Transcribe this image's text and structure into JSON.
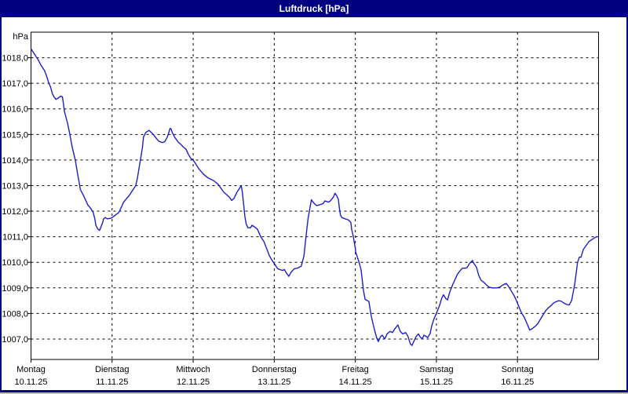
{
  "window": {
    "title": "Luftdruck [hPa]",
    "title_bar_color": "#000080",
    "border_color": "#000080",
    "background_color": "#ffffff"
  },
  "chart_data": {
    "type": "line",
    "title": "Luftdruck [hPa]",
    "ylabel": "hPa",
    "xlabel": "",
    "grid": "dashed",
    "legend_position": "none",
    "line_color": "#1e1ec8",
    "grid_color": "#000000",
    "ylim": [
      1006.2,
      1019.0
    ],
    "x_range_hours": [
      0,
      168
    ],
    "y_ticks": [
      {
        "value": 1018,
        "label": "1018,0"
      },
      {
        "value": 1017,
        "label": "1017,0"
      },
      {
        "value": 1016,
        "label": "1016,0"
      },
      {
        "value": 1015,
        "label": "1015,0"
      },
      {
        "value": 1014,
        "label": "1014,0"
      },
      {
        "value": 1013,
        "label": "1013,0"
      },
      {
        "value": 1012,
        "label": "1012,0"
      },
      {
        "value": 1011,
        "label": "1011,0"
      },
      {
        "value": 1010,
        "label": "1010,0"
      },
      {
        "value": 1009,
        "label": "1009,0"
      },
      {
        "value": 1008,
        "label": "1008,0"
      },
      {
        "value": 1007,
        "label": "1007,0"
      }
    ],
    "days": [
      {
        "name": "Montag",
        "date": "10.11.25"
      },
      {
        "name": "Dienstag",
        "date": "11.11.25"
      },
      {
        "name": "Mittwoch",
        "date": "12.11.25"
      },
      {
        "name": "Donnerstag",
        "date": "13.11.25"
      },
      {
        "name": "Freitag",
        "date": "14.11.25"
      },
      {
        "name": "Samstag",
        "date": "15.11.25"
      },
      {
        "name": "Sonntag",
        "date": "16.11.25"
      }
    ],
    "series": [
      {
        "name": "Luftdruck",
        "unit": "hPa",
        "points": [
          [
            0,
            1018.35
          ],
          [
            1,
            1018.15
          ],
          [
            2,
            1017.95
          ],
          [
            3,
            1017.7
          ],
          [
            4,
            1017.5
          ],
          [
            4.7,
            1017.25
          ],
          [
            5.3,
            1017.0
          ],
          [
            5.8,
            1016.85
          ],
          [
            6.3,
            1016.6
          ],
          [
            6.8,
            1016.47
          ],
          [
            7.4,
            1016.37
          ],
          [
            8,
            1016.42
          ],
          [
            8.8,
            1016.5
          ],
          [
            9.3,
            1016.47
          ],
          [
            9.6,
            1016.2
          ],
          [
            9.9,
            1015.9
          ],
          [
            10.8,
            1015.45
          ],
          [
            11.5,
            1015.0
          ],
          [
            12.2,
            1014.5
          ],
          [
            13.1,
            1014.0
          ],
          [
            13.8,
            1013.45
          ],
          [
            14.3,
            1013.1
          ],
          [
            14.6,
            1012.85
          ],
          [
            15.4,
            1012.65
          ],
          [
            16.1,
            1012.45
          ],
          [
            16.8,
            1012.25
          ],
          [
            17.7,
            1012.1
          ],
          [
            18.4,
            1011.95
          ],
          [
            18.9,
            1011.7
          ],
          [
            19.2,
            1011.45
          ],
          [
            19.8,
            1011.3
          ],
          [
            20.3,
            1011.25
          ],
          [
            21.2,
            1011.55
          ],
          [
            21.5,
            1011.7
          ],
          [
            22,
            1011.75
          ],
          [
            22.6,
            1011.7
          ],
          [
            23.5,
            1011.72
          ],
          [
            24,
            1011.75
          ],
          [
            24.5,
            1011.8
          ],
          [
            25,
            1011.85
          ],
          [
            26,
            1011.95
          ],
          [
            26.9,
            1012.2
          ],
          [
            27.3,
            1012.33
          ],
          [
            28,
            1012.45
          ],
          [
            29,
            1012.6
          ],
          [
            30,
            1012.8
          ],
          [
            31,
            1013.0
          ],
          [
            31.5,
            1013.3
          ],
          [
            32,
            1013.7
          ],
          [
            32.5,
            1014.1
          ],
          [
            33,
            1014.5
          ],
          [
            33.3,
            1014.9
          ],
          [
            33.7,
            1015.0
          ],
          [
            34,
            1015.08
          ],
          [
            34.9,
            1015.16
          ],
          [
            35.6,
            1015.08
          ],
          [
            36.5,
            1014.95
          ],
          [
            37.2,
            1014.83
          ],
          [
            37.9,
            1014.73
          ],
          [
            38.9,
            1014.68
          ],
          [
            39.6,
            1014.72
          ],
          [
            40.3,
            1014.88
          ],
          [
            41.2,
            1015.24
          ],
          [
            41.5,
            1015.2
          ],
          [
            41.9,
            1015.05
          ],
          [
            42.6,
            1014.88
          ],
          [
            43.6,
            1014.7
          ],
          [
            44.3,
            1014.62
          ],
          [
            45,
            1014.52
          ],
          [
            45.9,
            1014.42
          ],
          [
            46.6,
            1014.22
          ],
          [
            47.3,
            1014.06
          ],
          [
            48,
            1014.0
          ],
          [
            48.9,
            1013.82
          ],
          [
            49.6,
            1013.67
          ],
          [
            50.3,
            1013.56
          ],
          [
            51,
            1013.45
          ],
          [
            52.4,
            1013.3
          ],
          [
            54,
            1013.2
          ],
          [
            55.4,
            1013.05
          ],
          [
            57,
            1012.75
          ],
          [
            58.7,
            1012.55
          ],
          [
            59.4,
            1012.42
          ],
          [
            60.1,
            1012.5
          ],
          [
            61,
            1012.75
          ],
          [
            61.5,
            1012.85
          ],
          [
            62,
            1012.95
          ],
          [
            62.2,
            1013.0
          ],
          [
            62.5,
            1012.8
          ],
          [
            63,
            1012.2
          ],
          [
            63.3,
            1011.8
          ],
          [
            63.7,
            1011.5
          ],
          [
            64.2,
            1011.35
          ],
          [
            65,
            1011.35
          ],
          [
            65.4,
            1011.45
          ],
          [
            66,
            1011.4
          ],
          [
            66.5,
            1011.35
          ],
          [
            67,
            1011.3
          ],
          [
            67.5,
            1011.15
          ],
          [
            68,
            1011.0
          ],
          [
            68.5,
            1010.9
          ],
          [
            69,
            1010.8
          ],
          [
            69.5,
            1010.62
          ],
          [
            70,
            1010.45
          ],
          [
            70.5,
            1010.28
          ],
          [
            71,
            1010.15
          ],
          [
            71.5,
            1010.05
          ],
          [
            72,
            1009.95
          ],
          [
            73,
            1009.75
          ],
          [
            74,
            1009.7
          ],
          [
            74.5,
            1009.68
          ],
          [
            75,
            1009.72
          ],
          [
            75.5,
            1009.6
          ],
          [
            76.3,
            1009.45
          ],
          [
            77,
            1009.62
          ],
          [
            78,
            1009.75
          ],
          [
            79,
            1009.78
          ],
          [
            80,
            1009.85
          ],
          [
            80.8,
            1010.25
          ],
          [
            81.4,
            1011.0
          ],
          [
            82,
            1011.7
          ],
          [
            82.4,
            1012.0
          ],
          [
            83,
            1012.45
          ],
          [
            83.5,
            1012.35
          ],
          [
            84,
            1012.28
          ],
          [
            84.5,
            1012.22
          ],
          [
            85.5,
            1012.25
          ],
          [
            86.5,
            1012.3
          ],
          [
            87,
            1012.4
          ],
          [
            87.5,
            1012.38
          ],
          [
            88,
            1012.35
          ],
          [
            88.6,
            1012.4
          ],
          [
            89.5,
            1012.55
          ],
          [
            90,
            1012.7
          ],
          [
            90.5,
            1012.6
          ],
          [
            91,
            1012.45
          ],
          [
            91.3,
            1012.1
          ],
          [
            91.6,
            1011.85
          ],
          [
            92,
            1011.75
          ],
          [
            92.6,
            1011.72
          ],
          [
            93,
            1011.7
          ],
          [
            93.5,
            1011.68
          ],
          [
            94,
            1011.65
          ],
          [
            94.4,
            1011.6
          ],
          [
            94.7,
            1011.55
          ],
          [
            94.9,
            1011.3
          ],
          [
            95.4,
            1011.0
          ],
          [
            95.8,
            1010.7
          ],
          [
            96,
            1010.55
          ],
          [
            96.1,
            1010.4
          ],
          [
            97,
            1010.05
          ],
          [
            97.7,
            1009.7
          ],
          [
            98.4,
            1008.9
          ],
          [
            98.9,
            1008.55
          ],
          [
            99.6,
            1008.5
          ],
          [
            100,
            1008.47
          ],
          [
            100.7,
            1007.9
          ],
          [
            101.6,
            1007.4
          ],
          [
            102.3,
            1007.05
          ],
          [
            102.8,
            1006.9
          ],
          [
            103.5,
            1007.1
          ],
          [
            104,
            1007.15
          ],
          [
            104.7,
            1007.0
          ],
          [
            105.4,
            1007.2
          ],
          [
            106.3,
            1007.3
          ],
          [
            107,
            1007.25
          ],
          [
            107.7,
            1007.4
          ],
          [
            108.6,
            1007.55
          ],
          [
            109.3,
            1007.3
          ],
          [
            110,
            1007.2
          ],
          [
            110.9,
            1007.25
          ],
          [
            111.6,
            1007.1
          ],
          [
            112.3,
            1006.8
          ],
          [
            112.8,
            1006.75
          ],
          [
            113.3,
            1006.9
          ],
          [
            114,
            1007.1
          ],
          [
            114.7,
            1007.2
          ],
          [
            115.1,
            1007.1
          ],
          [
            115.8,
            1007.0
          ],
          [
            116.3,
            1007.15
          ],
          [
            117,
            1007.1
          ],
          [
            117.4,
            1007.05
          ],
          [
            118.1,
            1007.2
          ],
          [
            118.6,
            1007.5
          ],
          [
            119.3,
            1007.8
          ],
          [
            120,
            1008.0
          ],
          [
            120.9,
            1008.3
          ],
          [
            121.6,
            1008.6
          ],
          [
            122.1,
            1008.73
          ],
          [
            122.8,
            1008.58
          ],
          [
            123.3,
            1008.53
          ],
          [
            124,
            1008.85
          ],
          [
            124.9,
            1009.15
          ],
          [
            125.6,
            1009.35
          ],
          [
            126.3,
            1009.55
          ],
          [
            127.2,
            1009.7
          ],
          [
            127.7,
            1009.77
          ],
          [
            128.6,
            1009.77
          ],
          [
            129.1,
            1009.8
          ],
          [
            129.8,
            1009.95
          ],
          [
            130.7,
            1010.07
          ],
          [
            130.9,
            1010.0
          ],
          [
            131.9,
            1009.8
          ],
          [
            132.5,
            1009.5
          ],
          [
            133.2,
            1009.3
          ],
          [
            134.2,
            1009.2
          ],
          [
            134.9,
            1009.1
          ],
          [
            135.6,
            1009.03
          ],
          [
            136.5,
            1009.0
          ],
          [
            137.9,
            1009.0
          ],
          [
            138.8,
            1009.03
          ],
          [
            139.5,
            1009.1
          ],
          [
            140.2,
            1009.15
          ],
          [
            140.7,
            1009.17
          ],
          [
            141.4,
            1009.05
          ],
          [
            142.3,
            1008.85
          ],
          [
            143,
            1008.7
          ],
          [
            143.7,
            1008.5
          ],
          [
            144,
            1008.4
          ],
          [
            144.6,
            1008.2
          ],
          [
            145.3,
            1008.0
          ],
          [
            146,
            1007.85
          ],
          [
            147,
            1007.55
          ],
          [
            147.6,
            1007.35
          ],
          [
            148.3,
            1007.4
          ],
          [
            149.3,
            1007.5
          ],
          [
            150,
            1007.6
          ],
          [
            150.7,
            1007.75
          ],
          [
            151.6,
            1007.95
          ],
          [
            152.3,
            1008.1
          ],
          [
            153,
            1008.2
          ],
          [
            153.9,
            1008.3
          ],
          [
            154.6,
            1008.4
          ],
          [
            155.3,
            1008.45
          ],
          [
            156.2,
            1008.5
          ],
          [
            156.9,
            1008.48
          ],
          [
            157.6,
            1008.42
          ],
          [
            158.6,
            1008.35
          ],
          [
            159.3,
            1008.33
          ],
          [
            160,
            1008.5
          ],
          [
            160.9,
            1009.1
          ],
          [
            161.4,
            1009.6
          ],
          [
            161.8,
            1010.0
          ],
          [
            162.3,
            1010.2
          ],
          [
            162.8,
            1010.2
          ],
          [
            163.5,
            1010.5
          ],
          [
            164.4,
            1010.67
          ],
          [
            165.1,
            1010.8
          ],
          [
            165.8,
            1010.87
          ],
          [
            166.7,
            1010.95
          ],
          [
            167.4,
            1011.0
          ],
          [
            168,
            1011.0
          ]
        ]
      }
    ]
  }
}
